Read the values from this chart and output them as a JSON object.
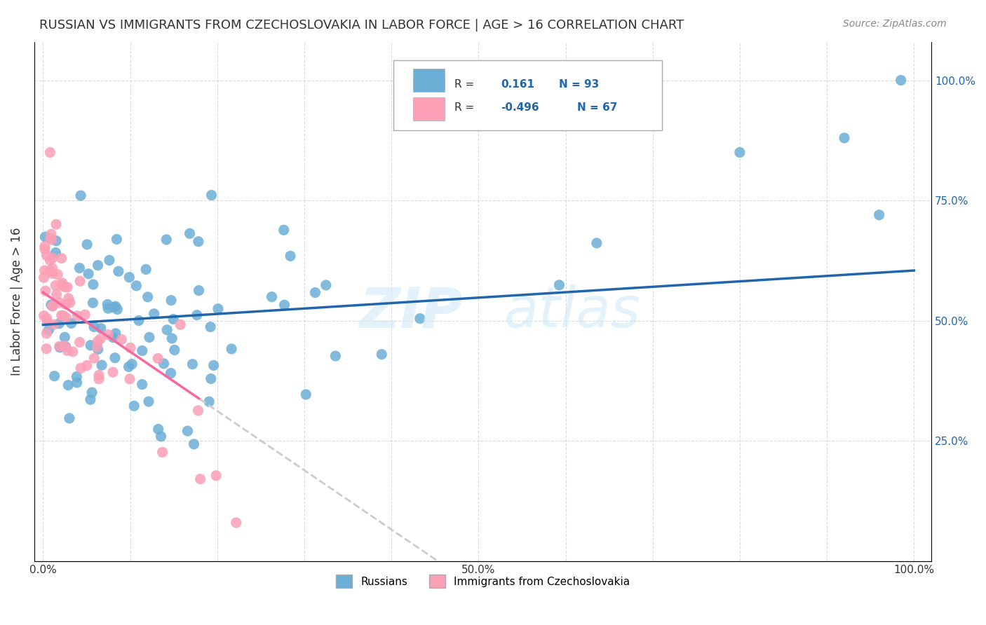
{
  "title": "RUSSIAN VS IMMIGRANTS FROM CZECHOSLOVAKIA IN LABOR FORCE | AGE > 16 CORRELATION CHART",
  "source": "Source: ZipAtlas.com",
  "ylabel": "In Labor Force | Age > 16",
  "r_russian": 0.161,
  "n_russian": 93,
  "r_czech": -0.496,
  "n_czech": 67,
  "blue_color": "#6baed6",
  "pink_color": "#fa9fb5",
  "blue_line_color": "#2166ac",
  "pink_line_color": "#f768a1",
  "watermark_zip": "ZIP",
  "watermark_atlas": "atlas",
  "x_tick_labels": [
    "0.0%",
    "",
    "",
    "",
    "",
    "50.0%",
    "",
    "",
    "",
    "",
    "100.0%"
  ],
  "y_tick_labels_right": [
    "",
    "25.0%",
    "50.0%",
    "75.0%",
    "100.0%"
  ],
  "legend_russian": "Russians",
  "legend_czech": "Immigrants from Czechoslovakia"
}
